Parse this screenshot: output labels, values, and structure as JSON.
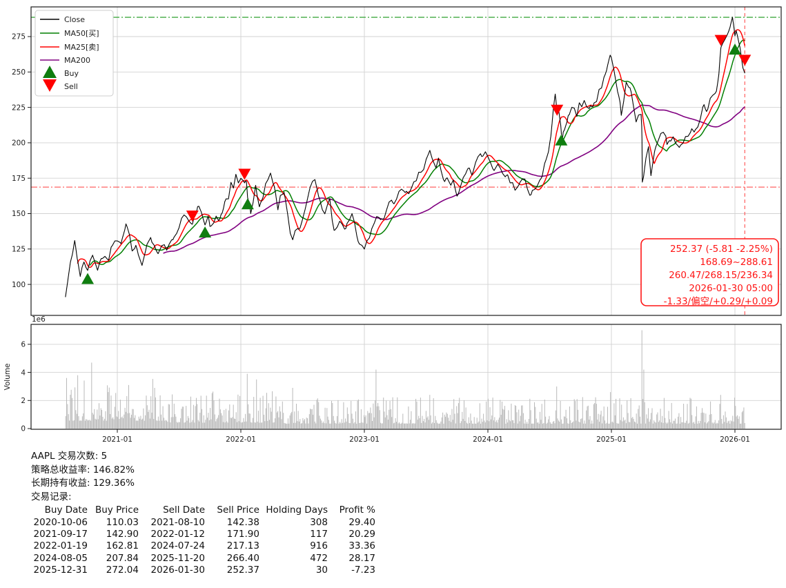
{
  "figure": {
    "legend": {
      "items": [
        {
          "label": "Close",
          "color": "#000000",
          "type": "line"
        },
        {
          "label": "MA50[买]",
          "color": "#007f00",
          "type": "line"
        },
        {
          "label": "MA25[卖]",
          "color": "#ff0000",
          "type": "line"
        },
        {
          "label": "MA200",
          "color": "#800080",
          "type": "line"
        },
        {
          "label": "Buy",
          "color": "#0f7d0f",
          "type": "triangle-up"
        },
        {
          "label": "Sell",
          "color": "#ff0000",
          "type": "triangle-down"
        }
      ]
    },
    "annotation": {
      "color": "#ff1414",
      "lines": [
        "252.37 (-5.81 -2.25%)",
        "168.69~288.61",
        "260.47/268.15/236.34",
        "2026-01-30 05:00",
        "-1.33/偏空/+0.29/+0.09"
      ]
    }
  },
  "chart_data": {
    "type": "line",
    "symbol": "AAPL",
    "title": "",
    "x_ticks": [
      {
        "t": 0,
        "label": "2021-01"
      },
      {
        "t": 1,
        "label": "2022-01"
      },
      {
        "t": 2,
        "label": "2023-01"
      },
      {
        "t": 3,
        "label": "2024-01"
      },
      {
        "t": 4,
        "label": "2025-01"
      },
      {
        "t": 5,
        "label": "2026-01"
      }
    ],
    "y_ticks": [
      100,
      125,
      150,
      175,
      200,
      225,
      250,
      275
    ],
    "ref_lines": {
      "upper": 288.61,
      "lower": 168.69,
      "vline_t": 5.08,
      "upper_color": "#2da02d",
      "lower_color": "#ff3b3b",
      "vline_color": "#ff5050"
    },
    "series": [
      {
        "name": "Close",
        "color": "#000000",
        "width": 1.1
      },
      {
        "name": "MA25[卖]",
        "color": "#ff0000",
        "window_days": 25,
        "window_years": 0.0995,
        "width": 1.5
      },
      {
        "name": "MA50[买]",
        "color": "#007f00",
        "window_days": 50,
        "window_years": 0.199,
        "width": 1.5
      },
      {
        "name": "MA200",
        "color": "#800080",
        "window_days": 200,
        "window_years": 0.796,
        "width": 1.6
      }
    ],
    "close_waypoints": [
      [
        -0.42,
        91
      ],
      [
        -0.4,
        103
      ],
      [
        -0.38,
        115
      ],
      [
        -0.365,
        120
      ],
      [
        -0.345,
        129
      ],
      [
        -0.325,
        117
      ],
      [
        -0.3,
        107
      ],
      [
        -0.285,
        113
      ],
      [
        -0.27,
        116
      ],
      [
        -0.255,
        112
      ],
      [
        -0.24,
        110
      ],
      [
        -0.22,
        117
      ],
      [
        -0.2,
        119
      ],
      [
        -0.18,
        115
      ],
      [
        -0.16,
        109
      ],
      [
        -0.13,
        118
      ],
      [
        -0.1,
        122
      ],
      [
        -0.07,
        119
      ],
      [
        -0.05,
        128
      ],
      [
        -0.02,
        131
      ],
      [
        0.0,
        133
      ],
      [
        0.03,
        129
      ],
      [
        0.07,
        142
      ],
      [
        0.1,
        132
      ],
      [
        0.12,
        121
      ],
      [
        0.15,
        127
      ],
      [
        0.17,
        121
      ],
      [
        0.2,
        116
      ],
      [
        0.23,
        123
      ],
      [
        0.27,
        134
      ],
      [
        0.3,
        127
      ],
      [
        0.33,
        122
      ],
      [
        0.36,
        127
      ],
      [
        0.4,
        125
      ],
      [
        0.45,
        130
      ],
      [
        0.5,
        144
      ],
      [
        0.54,
        149
      ],
      [
        0.58,
        146
      ],
      [
        0.608,
        142.4
      ],
      [
        0.63,
        149
      ],
      [
        0.65,
        156
      ],
      [
        0.68,
        154
      ],
      [
        0.71,
        142.9
      ],
      [
        0.735,
        146
      ],
      [
        0.75,
        139
      ],
      [
        0.78,
        143
      ],
      [
        0.8,
        149
      ],
      [
        0.83,
        148
      ],
      [
        0.85,
        151
      ],
      [
        0.87,
        158
      ],
      [
        0.9,
        161
      ],
      [
        0.92,
        172
      ],
      [
        0.94,
        169
      ],
      [
        0.96,
        176
      ],
      [
        0.98,
        173
      ],
      [
        1.0,
        178
      ],
      [
        1.015,
        175
      ],
      [
        1.03,
        171.9
      ],
      [
        1.045,
        173
      ],
      [
        1.055,
        162.8
      ],
      [
        1.07,
        160
      ],
      [
        1.08,
        152
      ],
      [
        1.1,
        160
      ],
      [
        1.12,
        168
      ],
      [
        1.135,
        158
      ],
      [
        1.15,
        152
      ],
      [
        1.18,
        161
      ],
      [
        1.2,
        168
      ],
      [
        1.22,
        172
      ],
      [
        1.24,
        178
      ],
      [
        1.27,
        170
      ],
      [
        1.3,
        156
      ],
      [
        1.32,
        162
      ],
      [
        1.35,
        166
      ],
      [
        1.38,
        152
      ],
      [
        1.4,
        140
      ],
      [
        1.42,
        132
      ],
      [
        1.44,
        138
      ],
      [
        1.47,
        140
      ],
      [
        1.5,
        147
      ],
      [
        1.54,
        158
      ],
      [
        1.58,
        170
      ],
      [
        1.6,
        172
      ],
      [
        1.63,
        161
      ],
      [
        1.66,
        155
      ],
      [
        1.68,
        150
      ],
      [
        1.7,
        155
      ],
      [
        1.72,
        157
      ],
      [
        1.74,
        142
      ],
      [
        1.755,
        138
      ],
      [
        1.78,
        143
      ],
      [
        1.8,
        145
      ],
      [
        1.82,
        140
      ],
      [
        1.85,
        138
      ],
      [
        1.88,
        145
      ],
      [
        1.9,
        148
      ],
      [
        1.92,
        142
      ],
      [
        1.95,
        132
      ],
      [
        1.97,
        129
      ],
      [
        2.0,
        125
      ],
      [
        2.02,
        130
      ],
      [
        2.05,
        136
      ],
      [
        2.08,
        144
      ],
      [
        2.1,
        151
      ],
      [
        2.13,
        147
      ],
      [
        2.15,
        148
      ],
      [
        2.18,
        152
      ],
      [
        2.2,
        155
      ],
      [
        2.23,
        157
      ],
      [
        2.25,
        160
      ],
      [
        2.28,
        164
      ],
      [
        2.3,
        166
      ],
      [
        2.33,
        163
      ],
      [
        2.35,
        165
      ],
      [
        2.38,
        169
      ],
      [
        2.4,
        173
      ],
      [
        2.43,
        177
      ],
      [
        2.45,
        180
      ],
      [
        2.48,
        185
      ],
      [
        2.5,
        187
      ],
      [
        2.53,
        193
      ],
      [
        2.55,
        186
      ],
      [
        2.58,
        178
      ],
      [
        2.6,
        184
      ],
      [
        2.62,
        181
      ],
      [
        2.65,
        174
      ],
      [
        2.67,
        176
      ],
      [
        2.7,
        171
      ],
      [
        2.72,
        174
      ],
      [
        2.75,
        166
      ],
      [
        2.78,
        172
      ],
      [
        2.8,
        178
      ],
      [
        2.83,
        181
      ],
      [
        2.85,
        182
      ],
      [
        2.87,
        178
      ],
      [
        2.9,
        186
      ],
      [
        2.92,
        191
      ],
      [
        2.95,
        189
      ],
      [
        2.98,
        194
      ],
      [
        3.0,
        192
      ],
      [
        3.02,
        186
      ],
      [
        3.05,
        181
      ],
      [
        3.08,
        184
      ],
      [
        3.1,
        185
      ],
      [
        3.12,
        182
      ],
      [
        3.15,
        179
      ],
      [
        3.18,
        174
      ],
      [
        3.2,
        171
      ],
      [
        3.22,
        168
      ],
      [
        3.25,
        169
      ],
      [
        3.28,
        172
      ],
      [
        3.3,
        171
      ],
      [
        3.33,
        167
      ],
      [
        3.35,
        165
      ],
      [
        3.38,
        169
      ],
      [
        3.4,
        173
      ],
      [
        3.43,
        178
      ],
      [
        3.45,
        183
      ],
      [
        3.47,
        187
      ],
      [
        3.49,
        192
      ],
      [
        3.51,
        203
      ],
      [
        3.53,
        222
      ],
      [
        3.545,
        232
      ],
      [
        3.555,
        224
      ],
      [
        3.56,
        217.1
      ],
      [
        3.57,
        224
      ],
      [
        3.58,
        218
      ],
      [
        3.59,
        211
      ],
      [
        3.6,
        198
      ],
      [
        3.61,
        207
      ],
      [
        3.62,
        210
      ],
      [
        3.64,
        217
      ],
      [
        3.65,
        222
      ],
      [
        3.67,
        225
      ],
      [
        3.7,
        228
      ],
      [
        3.72,
        220
      ],
      [
        3.74,
        226
      ],
      [
        3.76,
        222
      ],
      [
        3.78,
        228
      ],
      [
        3.8,
        222
      ],
      [
        3.83,
        227
      ],
      [
        3.85,
        225
      ],
      [
        3.88,
        230
      ],
      [
        3.9,
        235
      ],
      [
        3.93,
        242
      ],
      [
        3.95,
        247
      ],
      [
        3.97,
        253
      ],
      [
        3.99,
        258
      ],
      [
        4.02,
        250
      ],
      [
        4.05,
        236
      ],
      [
        4.07,
        230
      ],
      [
        4.08,
        222
      ],
      [
        4.1,
        233
      ],
      [
        4.12,
        247
      ],
      [
        4.14,
        244
      ],
      [
        4.15,
        241
      ],
      [
        4.17,
        230
      ],
      [
        4.2,
        214
      ],
      [
        4.22,
        221
      ],
      [
        4.24,
        218
      ],
      [
        4.247,
        208
      ],
      [
        4.25,
        172
      ],
      [
        4.27,
        183
      ],
      [
        4.3,
        198
      ],
      [
        4.32,
        180
      ],
      [
        4.35,
        196
      ],
      [
        4.38,
        205
      ],
      [
        4.4,
        209
      ],
      [
        4.42,
        211
      ],
      [
        4.44,
        204
      ],
      [
        4.45,
        198
      ],
      [
        4.47,
        201
      ],
      [
        4.5,
        201
      ],
      [
        4.52,
        199
      ],
      [
        4.55,
        196
      ],
      [
        4.58,
        201
      ],
      [
        4.6,
        205
      ],
      [
        4.62,
        202
      ],
      [
        4.65,
        210
      ],
      [
        4.67,
        208
      ],
      [
        4.7,
        214
      ],
      [
        4.72,
        220
      ],
      [
        4.75,
        229
      ],
      [
        4.77,
        226
      ],
      [
        4.8,
        232
      ],
      [
        4.82,
        236
      ],
      [
        4.85,
        239
      ],
      [
        4.87,
        249
      ],
      [
        4.886,
        266.4
      ],
      [
        4.9,
        269
      ],
      [
        4.92,
        272
      ],
      [
        4.94,
        275
      ],
      [
        4.95,
        278
      ],
      [
        4.965,
        283
      ],
      [
        4.98,
        287
      ],
      [
        4.99,
        280
      ],
      [
        5.0,
        272
      ],
      [
        5.01,
        277
      ],
      [
        5.02,
        275
      ],
      [
        5.035,
        268
      ],
      [
        5.05,
        262
      ],
      [
        5.065,
        255
      ],
      [
        5.08,
        252.4
      ]
    ],
    "markers": {
      "buy": [
        [
          -0.24,
          110.03
        ],
        [
          0.71,
          142.9
        ],
        [
          1.055,
          162.81
        ],
        [
          3.594,
          207.84
        ],
        [
          5.0,
          272.04
        ]
      ],
      "sell": [
        [
          0.608,
          142.38
        ],
        [
          1.03,
          171.9
        ],
        [
          3.56,
          217.13
        ],
        [
          4.886,
          266.4
        ],
        [
          5.08,
          252.37
        ]
      ]
    },
    "volume": {
      "ylabel": "Volume",
      "scale_label": "1e6",
      "y_ticks": [
        0,
        2,
        4,
        6
      ],
      "bar_color": "#b9b9b9",
      "spikes": [
        [
          -0.41,
          3.6
        ],
        [
          -0.32,
          3.8
        ],
        [
          -0.21,
          4.7
        ],
        [
          -0.07,
          2.6
        ],
        [
          0.09,
          3.1
        ],
        [
          0.3,
          2.9
        ],
        [
          1.05,
          3.9
        ],
        [
          1.13,
          3.5
        ],
        [
          1.42,
          2.9
        ],
        [
          2.095,
          4.2
        ],
        [
          2.53,
          2.4
        ],
        [
          3.56,
          3.0
        ],
        [
          3.99,
          2.6
        ],
        [
          4.25,
          7.0
        ],
        [
          4.263,
          4.2
        ],
        [
          4.886,
          2.4
        ],
        [
          5.0,
          2.2
        ]
      ],
      "base_profile": [
        [
          0.4,
          1.6
        ],
        [
          1.3,
          1.2
        ],
        [
          9,
          1.0
        ]
      ]
    }
  },
  "stats": {
    "lines": [
      "AAPL 交易次数: 5",
      "策略总收益率: 146.82%",
      "长期持有收益: 129.36%",
      "交易记录:"
    ],
    "table": {
      "headers": [
        "Buy Date",
        "Buy Price",
        "Sell Date",
        "Sell Price",
        "Holding Days",
        "Profit %"
      ],
      "rows": [
        [
          "2020-10-06",
          "110.03",
          "2021-08-10",
          "142.38",
          "308",
          "29.40"
        ],
        [
          "2021-09-17",
          "142.90",
          "2022-01-12",
          "171.90",
          "117",
          "20.29"
        ],
        [
          "2022-01-19",
          "162.81",
          "2024-07-24",
          "217.13",
          "916",
          "33.36"
        ],
        [
          "2024-08-05",
          "207.84",
          "2025-11-20",
          "266.40",
          "472",
          "28.17"
        ],
        [
          "2025-12-31",
          "272.04",
          "2026-01-30",
          "252.37",
          "30",
          "-7.23"
        ]
      ]
    }
  }
}
